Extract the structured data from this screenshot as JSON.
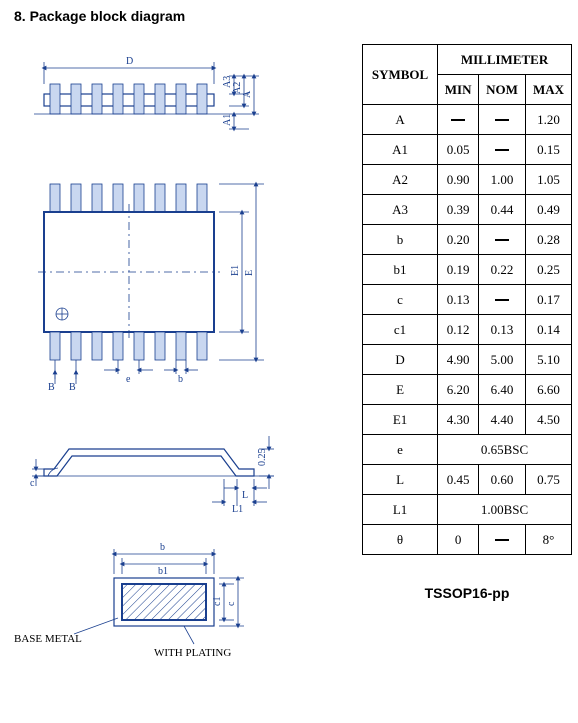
{
  "heading": "8.  Package block diagram",
  "package_label": "TSSOP16-pp",
  "diagram_labels": {
    "D": "D",
    "A3": "A3",
    "A2": "A2",
    "A": "A",
    "A1": "A1",
    "E": "E",
    "E1": "E1",
    "B_left": "B",
    "B_right": "B",
    "e": "e",
    "b_lower": "b",
    "c": "c",
    "L": "L",
    "L1": "L1",
    "val025": "0.25",
    "b_top": "b",
    "b1": "b1",
    "c1": "c1",
    "c_right": "c",
    "base_metal": "BASE METAL",
    "with_plating": "WITH PLATING"
  },
  "table": {
    "header_group": "MILLIMETER",
    "header_symbol": "SYMBOL",
    "header_min": "MIN",
    "header_nom": "NOM",
    "header_max": "MAX",
    "rows": [
      {
        "sym": "A",
        "min": null,
        "nom": null,
        "max": "1.20"
      },
      {
        "sym": "A1",
        "min": "0.05",
        "nom": null,
        "max": "0.15"
      },
      {
        "sym": "A2",
        "min": "0.90",
        "nom": "1.00",
        "max": "1.05"
      },
      {
        "sym": "A3",
        "min": "0.39",
        "nom": "0.44",
        "max": "0.49"
      },
      {
        "sym": "b",
        "min": "0.20",
        "nom": null,
        "max": "0.28"
      },
      {
        "sym": "b1",
        "min": "0.19",
        "nom": "0.22",
        "max": "0.25"
      },
      {
        "sym": "c",
        "min": "0.13",
        "nom": null,
        "max": "0.17"
      },
      {
        "sym": "c1",
        "min": "0.12",
        "nom": "0.13",
        "max": "0.14"
      },
      {
        "sym": "D",
        "min": "4.90",
        "nom": "5.00",
        "max": "5.10"
      },
      {
        "sym": "E",
        "min": "6.20",
        "nom": "6.40",
        "max": "6.60"
      },
      {
        "sym": "E1",
        "min": "4.30",
        "nom": "4.40",
        "max": "4.50"
      },
      {
        "sym": "e",
        "span": "0.65BSC"
      },
      {
        "sym": "L",
        "min": "0.45",
        "nom": "0.60",
        "max": "0.75"
      },
      {
        "sym": "L1",
        "span": "1.00BSC"
      },
      {
        "sym": "θ",
        "min": "0",
        "nom": null,
        "max": "8°"
      }
    ]
  },
  "colors": {
    "line": "#1a3f8f",
    "fill": "#c9d7f0",
    "text": "#000000",
    "background": "#ffffff"
  }
}
